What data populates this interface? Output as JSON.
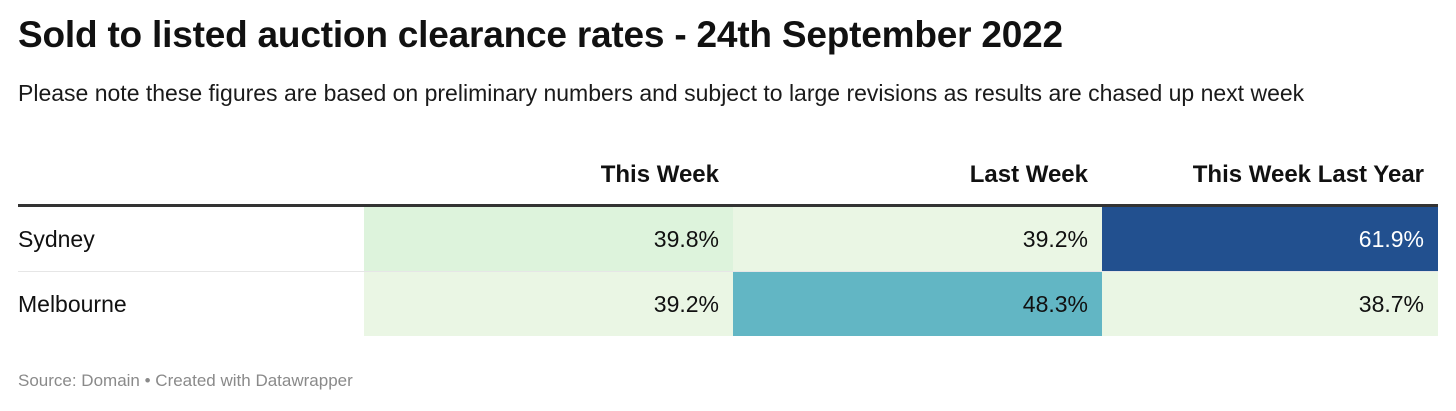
{
  "title": "Sold to listed auction clearance rates - 24th September 2022",
  "subtitle": "Please note these figures are based on preliminary numbers and subject to large revisions as results are chased up next week",
  "footer": "Source: Domain • Created with Datawrapper",
  "colors": {
    "lightest": "#eaf6e4",
    "light": "#ddf3dc",
    "teal": "#62b6c4",
    "navy": "#22508f"
  },
  "chart_data": {
    "type": "table",
    "columns": [
      "This Week",
      "Last Week",
      "This Week Last Year"
    ],
    "rows": [
      {
        "city": "Sydney",
        "values": [
          "39.8%",
          "39.2%",
          "61.9%"
        ],
        "fills": [
          "#ddf3dc",
          "#eaf6e4",
          "#22508f"
        ],
        "text_colors": [
          "#111111",
          "#111111",
          "#ffffff"
        ]
      },
      {
        "city": "Melbourne",
        "values": [
          "39.2%",
          "48.3%",
          "38.7%"
        ],
        "fills": [
          "#eaf6e4",
          "#62b6c4",
          "#eaf6e4"
        ],
        "text_colors": [
          "#111111",
          "#111111",
          "#111111"
        ]
      }
    ]
  }
}
